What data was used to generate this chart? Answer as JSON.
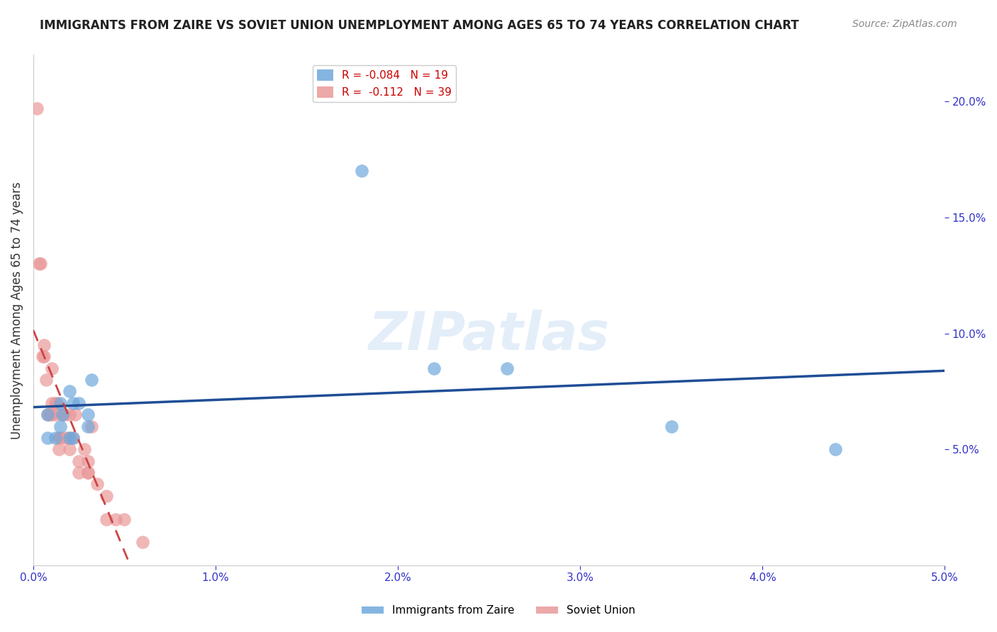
{
  "title": "IMMIGRANTS FROM ZAIRE VS SOVIET UNION UNEMPLOYMENT AMONG AGES 65 TO 74 YEARS CORRELATION CHART",
  "source": "Source: ZipAtlas.com",
  "ylabel": "Unemployment Among Ages 65 to 74 years",
  "r_zaire": -0.084,
  "n_zaire": 19,
  "r_soviet": -0.112,
  "n_soviet": 39,
  "xlim": [
    0.0,
    0.05
  ],
  "ylim": [
    0.0,
    0.22
  ],
  "right_yticks": [
    0.05,
    0.1,
    0.15,
    0.2
  ],
  "right_yticklabels": [
    "5.0%",
    "10.0%",
    "15.0%",
    "20.0%"
  ],
  "bottom_xticks": [
    0.0,
    0.01,
    0.02,
    0.03,
    0.04,
    0.05
  ],
  "bottom_xticklabels": [
    "0.0%",
    "1.0%",
    "2.0%",
    "3.0%",
    "4.0%",
    "5.0%"
  ],
  "zaire_color": "#6fa8dc",
  "soviet_color": "#ea9999",
  "trendline_zaire_color": "#1f4e96",
  "trendline_soviet_color": "#cc4444",
  "watermark": "ZIPatlas",
  "zaire_x": [
    0.0008,
    0.0008,
    0.0012,
    0.0015,
    0.0015,
    0.0016,
    0.002,
    0.002,
    0.0022,
    0.0022,
    0.0025,
    0.003,
    0.003,
    0.0032,
    0.018,
    0.022,
    0.026,
    0.035,
    0.044
  ],
  "zaire_y": [
    0.055,
    0.065,
    0.055,
    0.06,
    0.07,
    0.065,
    0.055,
    0.075,
    0.055,
    0.07,
    0.07,
    0.06,
    0.065,
    0.08,
    0.17,
    0.085,
    0.085,
    0.06,
    0.05
  ],
  "soviet_x": [
    0.0002,
    0.0003,
    0.0004,
    0.0005,
    0.0006,
    0.0006,
    0.0007,
    0.0008,
    0.0009,
    0.001,
    0.001,
    0.001,
    0.0012,
    0.0012,
    0.0013,
    0.0014,
    0.0014,
    0.0015,
    0.0016,
    0.0017,
    0.0018,
    0.002,
    0.002,
    0.002,
    0.0022,
    0.0023,
    0.0025,
    0.0025,
    0.0028,
    0.003,
    0.003,
    0.003,
    0.0032,
    0.0035,
    0.004,
    0.004,
    0.0045,
    0.005,
    0.006
  ],
  "soviet_y": [
    0.197,
    0.13,
    0.13,
    0.09,
    0.09,
    0.095,
    0.08,
    0.065,
    0.065,
    0.085,
    0.07,
    0.065,
    0.065,
    0.07,
    0.07,
    0.055,
    0.05,
    0.055,
    0.065,
    0.065,
    0.055,
    0.065,
    0.055,
    0.05,
    0.055,
    0.065,
    0.04,
    0.045,
    0.05,
    0.04,
    0.045,
    0.04,
    0.06,
    0.035,
    0.03,
    0.02,
    0.02,
    0.02,
    0.01
  ]
}
